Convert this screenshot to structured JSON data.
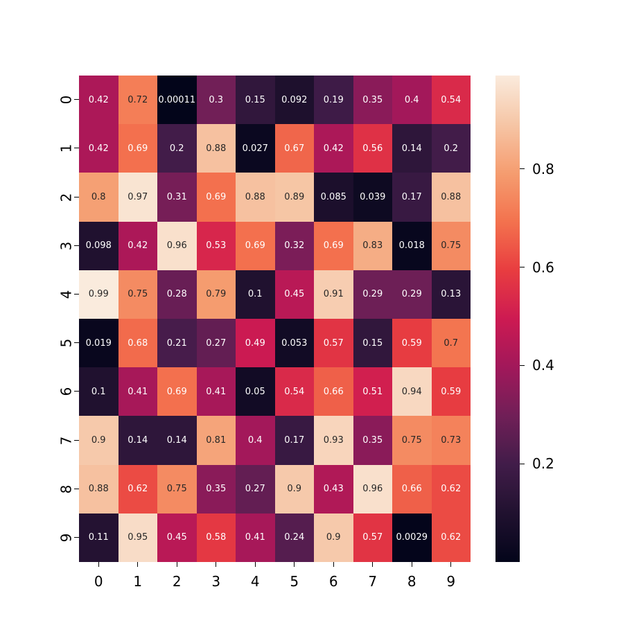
{
  "chart_data": {
    "type": "heatmap",
    "title": "",
    "xlabel": "",
    "ylabel": "",
    "x_categories": [
      "0",
      "1",
      "2",
      "3",
      "4",
      "5",
      "6",
      "7",
      "8",
      "9"
    ],
    "y_categories": [
      "0",
      "1",
      "2",
      "3",
      "4",
      "5",
      "6",
      "7",
      "8",
      "9"
    ],
    "values": [
      [
        0.42,
        0.72,
        0.00011,
        0.3,
        0.15,
        0.092,
        0.19,
        0.35,
        0.4,
        0.54
      ],
      [
        0.42,
        0.69,
        0.2,
        0.88,
        0.027,
        0.67,
        0.42,
        0.56,
        0.14,
        0.2
      ],
      [
        0.8,
        0.97,
        0.31,
        0.69,
        0.88,
        0.89,
        0.085,
        0.039,
        0.17,
        0.88
      ],
      [
        0.098,
        0.42,
        0.96,
        0.53,
        0.69,
        0.32,
        0.69,
        0.83,
        0.018,
        0.75
      ],
      [
        0.99,
        0.75,
        0.28,
        0.79,
        0.1,
        0.45,
        0.91,
        0.29,
        0.29,
        0.13
      ],
      [
        0.019,
        0.68,
        0.21,
        0.27,
        0.49,
        0.053,
        0.57,
        0.15,
        0.59,
        0.7
      ],
      [
        0.1,
        0.41,
        0.69,
        0.41,
        0.05,
        0.54,
        0.66,
        0.51,
        0.94,
        0.59
      ],
      [
        0.9,
        0.14,
        0.14,
        0.81,
        0.4,
        0.17,
        0.93,
        0.35,
        0.75,
        0.73
      ],
      [
        0.88,
        0.62,
        0.75,
        0.35,
        0.27,
        0.9,
        0.43,
        0.96,
        0.66,
        0.62
      ],
      [
        0.11,
        0.95,
        0.45,
        0.58,
        0.41,
        0.24,
        0.9,
        0.57,
        0.0029,
        0.62
      ]
    ],
    "annotations": [
      [
        "0.42",
        "0.72",
        "0.00011",
        "0.3",
        "0.15",
        "0.092",
        "0.19",
        "0.35",
        "0.4",
        "0.54"
      ],
      [
        "0.42",
        "0.69",
        "0.2",
        "0.88",
        "0.027",
        "0.67",
        "0.42",
        "0.56",
        "0.14",
        "0.2"
      ],
      [
        "0.8",
        "0.97",
        "0.31",
        "0.69",
        "0.88",
        "0.89",
        "0.085",
        "0.039",
        "0.17",
        "0.88"
      ],
      [
        "0.098",
        "0.42",
        "0.96",
        "0.53",
        "0.69",
        "0.32",
        "0.69",
        "0.83",
        "0.018",
        "0.75"
      ],
      [
        "0.99",
        "0.75",
        "0.28",
        "0.79",
        "0.1",
        "0.45",
        "0.91",
        "0.29",
        "0.29",
        "0.13"
      ],
      [
        "0.019",
        "0.68",
        "0.21",
        "0.27",
        "0.49",
        "0.053",
        "0.57",
        "0.15",
        "0.59",
        "0.7"
      ],
      [
        "0.1",
        "0.41",
        "0.69",
        "0.41",
        "0.05",
        "0.54",
        "0.66",
        "0.51",
        "0.94",
        "0.59"
      ],
      [
        "0.9",
        "0.14",
        "0.14",
        "0.81",
        "0.4",
        "0.17",
        "0.93",
        "0.35",
        "0.75",
        "0.73"
      ],
      [
        "0.88",
        "0.62",
        "0.75",
        "0.35",
        "0.27",
        "0.9",
        "0.43",
        "0.96",
        "0.66",
        "0.62"
      ],
      [
        "0.11",
        "0.95",
        "0.45",
        "0.58",
        "0.41",
        "0.24",
        "0.9",
        "0.57",
        "0.0029",
        "0.62"
      ]
    ],
    "colormap": "rocket",
    "vmin": 0.00011,
    "vmax": 0.99,
    "colorbar": {
      "ticks": [
        0.2,
        0.4,
        0.6,
        0.8
      ],
      "tick_labels": [
        "0.2",
        "0.4",
        "0.6",
        "0.8"
      ]
    },
    "grid": false,
    "legend_position": "right (colorbar)"
  }
}
